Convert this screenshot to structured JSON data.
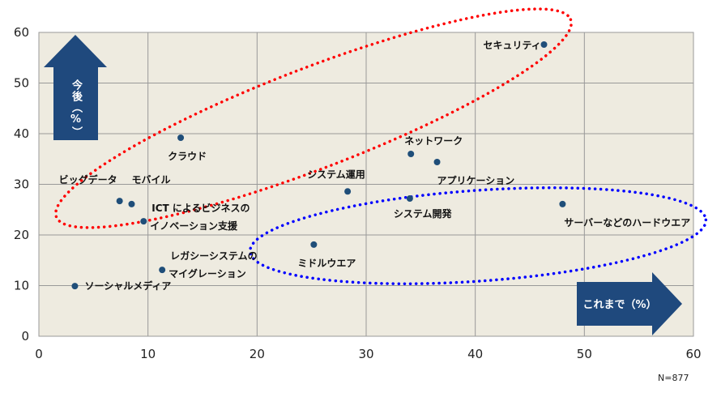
{
  "chart_data": {
    "type": "scatter",
    "title": "",
    "xlabel": "これまで（%）",
    "ylabel": "今後（%）",
    "xlim": [
      0,
      60
    ],
    "ylim": [
      0,
      60
    ],
    "x_ticks": [
      "0",
      "10",
      "20",
      "30",
      "40",
      "50",
      "60"
    ],
    "y_ticks": [
      "0",
      "10",
      "20",
      "30",
      "40",
      "50",
      "60"
    ],
    "grid": true,
    "note": "N=877",
    "point_color": "#1f4e79",
    "plot_background": "#eeebe0",
    "points": [
      {
        "label": "セキュリティ",
        "x": 46.3,
        "y": 57.6
      },
      {
        "label": "クラウド",
        "x": 13.0,
        "y": 39.2
      },
      {
        "label": "ビッグデータ",
        "x": 7.4,
        "y": 26.7
      },
      {
        "label": "モバイル",
        "x": 8.5,
        "y": 26.1
      },
      {
        "label": "ICT によるビジネスの|イノベーション支援",
        "x": 9.6,
        "y": 22.7
      },
      {
        "label": "レガシーシステムの|マイグレーション",
        "x": 11.3,
        "y": 13.1
      },
      {
        "label": "ソーシャルメディア",
        "x": 3.3,
        "y": 9.9
      },
      {
        "label": "ネットワーク",
        "x": 34.1,
        "y": 36.0
      },
      {
        "label": "アプリケーション",
        "x": 36.5,
        "y": 34.4
      },
      {
        "label": "システム運用",
        "x": 28.3,
        "y": 28.6
      },
      {
        "label": "システム開発",
        "x": 34.0,
        "y": 27.2
      },
      {
        "label": "サーバーなどのハードウエア",
        "x": 48.0,
        "y": 26.1
      },
      {
        "label": "ミドルウエア",
        "x": 25.2,
        "y": 18.1
      }
    ],
    "annotations": [
      {
        "type": "ellipse",
        "color": "#ff0000",
        "style": "dotted"
      },
      {
        "type": "ellipse",
        "color": "#0000ff",
        "style": "dotted"
      }
    ]
  }
}
